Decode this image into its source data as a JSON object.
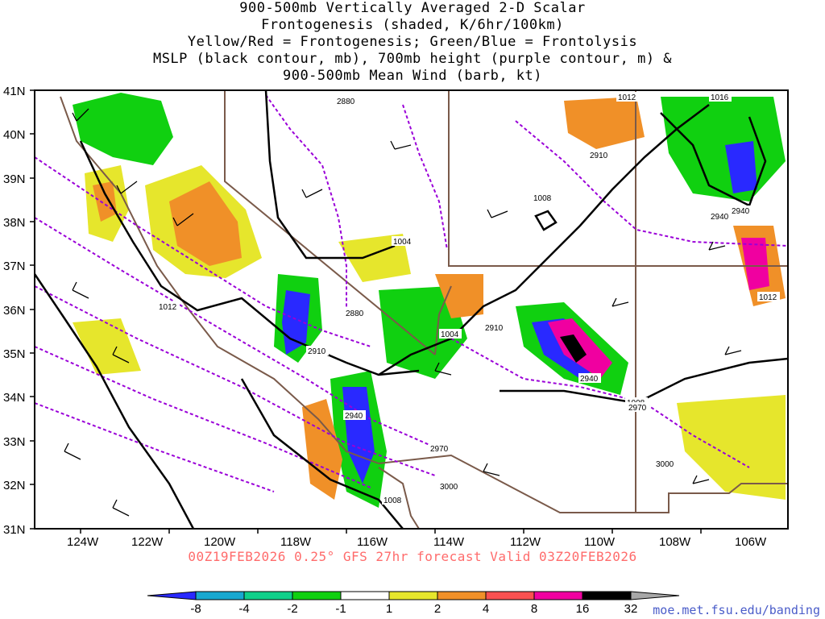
{
  "title_lines": [
    "900-500mb Vertically Averaged 2-D Scalar",
    "Frontogenesis (shaded, K/6hr/100km)",
    "Yellow/Red = Frontogenesis;  Green/Blue = Frontolysis",
    "MSLP (black contour, mb), 700mb height (purple contour, m) &",
    "900-500mb Mean Wind (barb, kt)"
  ],
  "footer": "00Z19FEB2026 0.25° GFS 27hr forecast Valid 03Z20FEB2026",
  "credit": "moe.met.fsu.edu/banding",
  "axes": {
    "lat_labels": [
      "41N",
      "40N",
      "39N",
      "38N",
      "37N",
      "36N",
      "35N",
      "34N",
      "33N",
      "32N",
      "31N"
    ],
    "lon_labels": [
      "124W",
      "122W",
      "120W",
      "118W",
      "116W",
      "114W",
      "112W",
      "110W",
      "108W",
      "106W"
    ]
  },
  "colorbar": {
    "ticks": [
      "-8",
      "-4",
      "-2",
      "-1",
      "1",
      "2",
      "4",
      "8",
      "16",
      "32"
    ],
    "colors": [
      "#2929ff",
      "#18a8d0",
      "#0fd08a",
      "#10d010",
      "#ffffff",
      "#e6e62c",
      "#f09028",
      "#fa5050",
      "#f000a0",
      "#000000",
      "#a8a8a8"
    ]
  },
  "mslp_labels": [
    "1012",
    "1016",
    "1008",
    "1004",
    "1012",
    "1004",
    "1012",
    "1008",
    "1008"
  ],
  "height_labels": [
    "2880",
    "2910",
    "2940",
    "2940",
    "2880",
    "2910",
    "2910",
    "2940",
    "2940",
    "2970",
    "3000",
    "3000",
    "2970"
  ]
}
